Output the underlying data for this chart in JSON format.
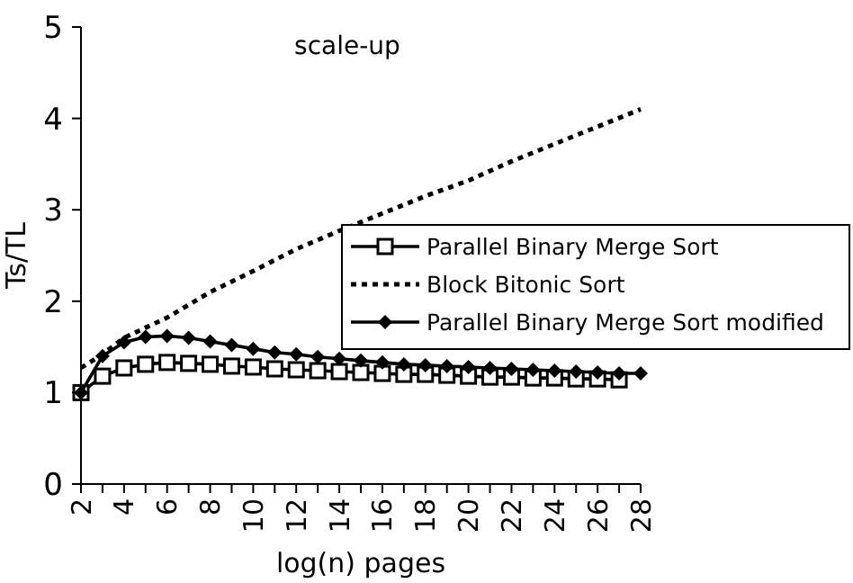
{
  "chart_data": {
    "type": "line",
    "title": "scale-up",
    "xlabel": "log(n) pages",
    "ylabel": "Ts/TL",
    "xlim": [
      2,
      28
    ],
    "xticks": [
      2,
      {
        "value": 3,
        "label": null
      },
      4,
      {
        "value": 5,
        "label": null
      },
      6,
      {
        "value": 7,
        "label": null
      },
      8,
      {
        "value": 9,
        "label": null
      },
      10,
      {
        "value": 11,
        "label": null
      },
      12,
      {
        "value": 13,
        "label": null
      },
      14,
      {
        "value": 15,
        "label": null
      },
      16,
      {
        "value": 17,
        "label": null
      },
      18,
      {
        "value": 19,
        "label": null
      },
      20,
      {
        "value": 21,
        "label": null
      },
      22,
      {
        "value": 23,
        "label": null
      },
      24,
      {
        "value": 25,
        "label": null
      },
      26,
      {
        "value": 27,
        "label": null
      },
      28
    ],
    "ylim": [
      0,
      5
    ],
    "yticks": [
      0,
      1,
      2,
      3,
      4,
      5
    ],
    "grid": false,
    "legend": "right",
    "series": [
      {
        "name": "Parallel Binary Merge Sort",
        "color": "#000000",
        "marker": "square",
        "line_style": "solid",
        "x": [
          2,
          3,
          4,
          5,
          6,
          7,
          8,
          9,
          10,
          11,
          12,
          13,
          14,
          15,
          16,
          17,
          18,
          19,
          20,
          21,
          22,
          23,
          24,
          25,
          26,
          27
        ],
        "values": [
          1.0,
          1.18,
          1.27,
          1.31,
          1.33,
          1.32,
          1.31,
          1.29,
          1.28,
          1.26,
          1.25,
          1.24,
          1.23,
          1.22,
          1.21,
          1.2,
          1.2,
          1.19,
          1.18,
          1.17,
          1.17,
          1.16,
          1.16,
          1.15,
          1.15,
          1.14
        ]
      },
      {
        "name": "Block Bitonic Sort",
        "color": "#000000",
        "marker": "none",
        "line_style": "dotted",
        "x": [
          2,
          3,
          4,
          6,
          8,
          10,
          12,
          14,
          16,
          18,
          20,
          22,
          24,
          26,
          28
        ],
        "values": [
          1.27,
          1.42,
          1.6,
          1.82,
          2.1,
          2.33,
          2.57,
          2.77,
          2.96,
          3.15,
          3.32,
          3.53,
          3.72,
          3.91,
          4.1
        ]
      },
      {
        "name": "Parallel Binary Merge Sort modified",
        "color": "#000000",
        "marker": "diamond",
        "line_style": "solid",
        "x": [
          2,
          3,
          4,
          5,
          6,
          7,
          8,
          9,
          10,
          11,
          12,
          13,
          14,
          15,
          16,
          17,
          18,
          19,
          20,
          21,
          22,
          23,
          24,
          25,
          26,
          27,
          28
        ],
        "values": [
          1.0,
          1.4,
          1.55,
          1.61,
          1.62,
          1.6,
          1.56,
          1.52,
          1.48,
          1.44,
          1.42,
          1.39,
          1.37,
          1.35,
          1.33,
          1.31,
          1.3,
          1.29,
          1.28,
          1.27,
          1.26,
          1.25,
          1.24,
          1.23,
          1.22,
          1.21,
          1.21
        ]
      }
    ]
  }
}
